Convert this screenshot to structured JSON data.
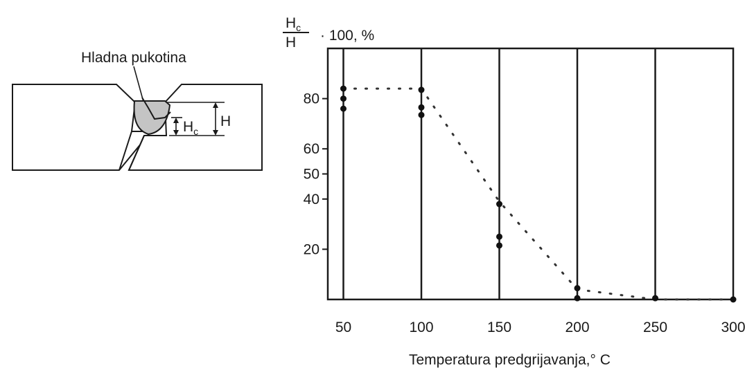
{
  "diagram": {
    "crack_label": "Hladna pukotina",
    "hc_letter": "H",
    "hc_subscript": "c",
    "h_label": "H"
  },
  "chart_data": {
    "type": "scatter",
    "y_label": {
      "numerator_letter": "H",
      "numerator_subscript": "c",
      "denominator": "H",
      "suffix": "· 100, %"
    },
    "xlabel": "Temperatura predgrijavanja,° C",
    "x_ticks": [
      "50",
      "100",
      "150",
      "200",
      "250",
      "300"
    ],
    "y_ticks": [
      "80",
      "60",
      "50",
      "40",
      "20"
    ],
    "y_tick_values": [
      80,
      60,
      50,
      40,
      20
    ],
    "xlim": [
      40,
      300
    ],
    "ylim": [
      0,
      100
    ],
    "grid_x": true,
    "grid_y": false,
    "points": [
      {
        "x": 50,
        "y": 84
      },
      {
        "x": 50,
        "y": 80
      },
      {
        "x": 50,
        "y": 76
      },
      {
        "x": 100,
        "y": 83.5
      },
      {
        "x": 100,
        "y": 76.5
      },
      {
        "x": 100,
        "y": 73.5
      },
      {
        "x": 150,
        "y": 38
      },
      {
        "x": 150,
        "y": 25
      },
      {
        "x": 150,
        "y": 21.5
      },
      {
        "x": 200,
        "y": 4.5
      },
      {
        "x": 200,
        "y": 0.5
      },
      {
        "x": 250,
        "y": 0.5
      },
      {
        "x": 300,
        "y": 0
      }
    ],
    "trend": [
      {
        "x": 50,
        "y": 84
      },
      {
        "x": 100,
        "y": 84
      },
      {
        "x": 150,
        "y": 39
      },
      {
        "x": 200,
        "y": 4
      },
      {
        "x": 250,
        "y": 0
      },
      {
        "x": 300,
        "y": 0
      }
    ]
  }
}
